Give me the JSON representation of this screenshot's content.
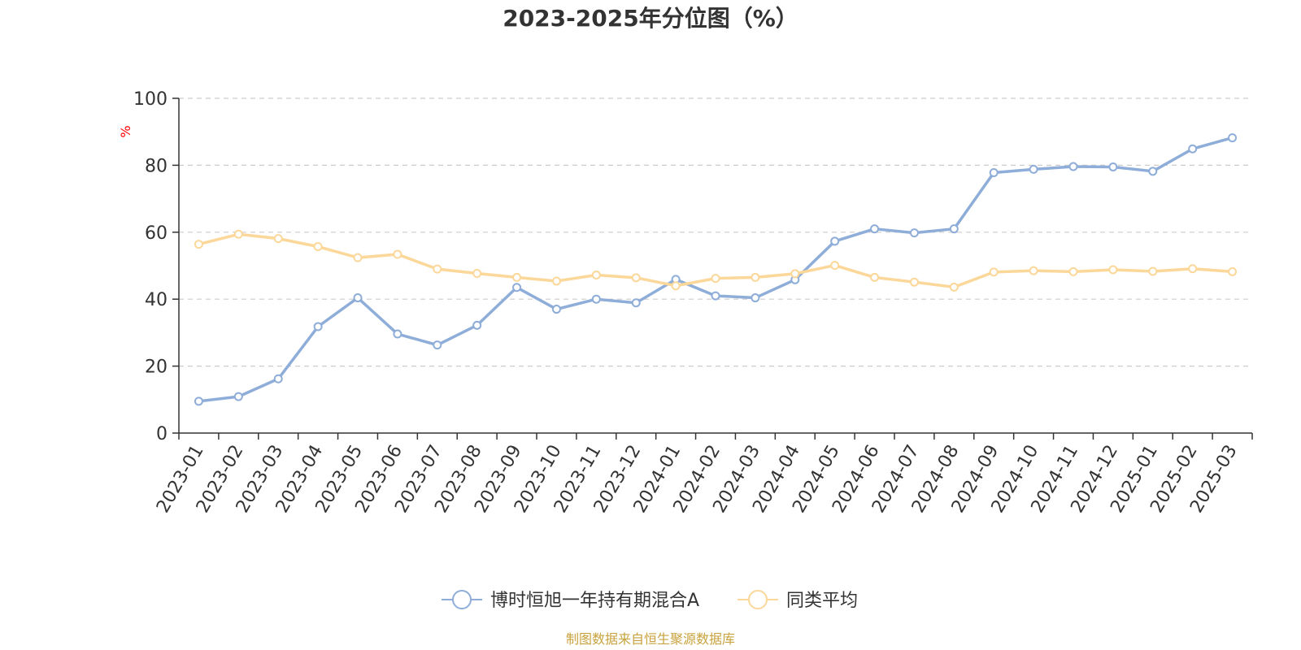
{
  "chart_data": {
    "type": "line",
    "title": "2023-2025年分位图（%）",
    "y_unit": "%",
    "ylim": [
      0,
      100
    ],
    "y_ticks": [
      0,
      20,
      40,
      60,
      80,
      100
    ],
    "grid": "horizontal dashed",
    "legend_position": "bottom-center",
    "categories": [
      "2023-01",
      "2023-02",
      "2023-03",
      "2023-04",
      "2023-05",
      "2023-06",
      "2023-07",
      "2023-08",
      "2023-09",
      "2023-10",
      "2023-11",
      "2023-12",
      "2024-01",
      "2024-02",
      "2024-03",
      "2024-04",
      "2024-05",
      "2024-06",
      "2024-07",
      "2024-08",
      "2024-09",
      "2024-10",
      "2024-11",
      "2024-12",
      "2025-01",
      "2025-02",
      "2025-03"
    ],
    "series": [
      {
        "name": "博时恒旭一年持有期混合A",
        "color": "#8eadd8",
        "values": [
          9.5,
          10.9,
          16.2,
          31.8,
          40.4,
          29.6,
          26.3,
          32.2,
          43.5,
          37.0,
          40.0,
          38.9,
          45.9,
          41.0,
          40.4,
          45.8,
          57.3,
          61.0,
          59.8,
          61.0,
          77.8,
          78.8,
          79.6,
          79.5,
          78.2,
          84.9,
          88.2
        ]
      },
      {
        "name": "同类平均",
        "color": "#fbd799",
        "values": [
          56.4,
          59.4,
          58.1,
          55.7,
          52.4,
          53.4,
          49.0,
          47.7,
          46.5,
          45.4,
          47.2,
          46.4,
          44.0,
          46.2,
          46.5,
          47.6,
          50.1,
          46.5,
          45.1,
          43.6,
          48.1,
          48.5,
          48.2,
          48.8,
          48.3,
          49.1,
          48.2
        ]
      }
    ]
  },
  "source_text": "制图数据来自恒生聚源数据库",
  "colors": {
    "axis": "#333333",
    "grid": "#cccccc",
    "unit": "#ff0000",
    "source": "#c8a23c"
  }
}
